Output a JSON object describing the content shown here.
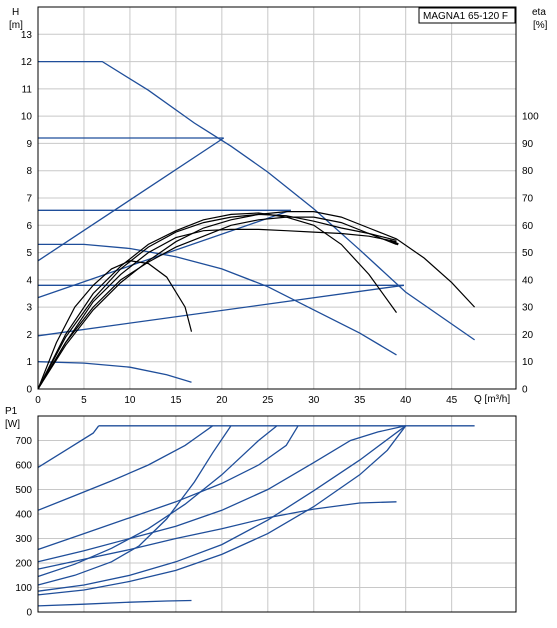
{
  "chart_data": [
    {
      "type": "line",
      "title": "MAGNA1 65-120 F",
      "xlabel": "Q [m³/h]",
      "ylabel_left": [
        "H",
        "[m]"
      ],
      "ylabel_right": [
        "eta",
        "[%]"
      ],
      "xlim": [
        0,
        52
      ],
      "ylim": [
        0,
        14
      ],
      "ylim_right": [
        0,
        140
      ],
      "x_ticks": [
        "0",
        "5",
        "10",
        "15",
        "20",
        "25",
        "30",
        "35",
        "40",
        "45"
      ],
      "y_ticks": [
        "0",
        "1",
        "2",
        "3",
        "4",
        "5",
        "6",
        "7",
        "8",
        "9",
        "10",
        "11",
        "12",
        "13"
      ],
      "y_ticks_right": [
        "0",
        "10",
        "20",
        "30",
        "40",
        "50",
        "60",
        "70",
        "80",
        "90",
        "100"
      ],
      "grid": true,
      "series_head": [
        {
          "kind": "max-curve",
          "points": [
            [
              0,
              12
            ],
            [
              7,
              12
            ],
            [
              12,
              10.95
            ],
            [
              17,
              9.75
            ],
            [
              21,
              8.9
            ],
            [
              25,
              7.95
            ],
            [
              30,
              6.6
            ],
            [
              35,
              5.1
            ],
            [
              40,
              3.55
            ],
            [
              47.5,
              1.8
            ]
          ]
        },
        {
          "kind": "constant-pressure",
          "points": [
            [
              0,
              9.2
            ],
            [
              20.2,
              9.2
            ]
          ]
        },
        {
          "kind": "constant-pressure",
          "points": [
            [
              0,
              6.55
            ],
            [
              27.5,
              6.55
            ]
          ]
        },
        {
          "kind": "constant-pressure",
          "points": [
            [
              0,
              3.8
            ],
            [
              39.8,
              3.8
            ]
          ]
        },
        {
          "kind": "proportional-pressure",
          "points": [
            [
              0,
              4.7
            ],
            [
              20.2,
              9.2
            ]
          ]
        },
        {
          "kind": "proportional-pressure",
          "points": [
            [
              0,
              3.35
            ],
            [
              27.5,
              6.55
            ]
          ]
        },
        {
          "kind": "proportional-pressure",
          "points": [
            [
              0,
              1.95
            ],
            [
              39.8,
              3.8
            ]
          ]
        },
        {
          "kind": "constant-curve",
          "points": [
            [
              0,
              5.3
            ],
            [
              5,
              5.3
            ],
            [
              10,
              5.15
            ],
            [
              15,
              4.85
            ],
            [
              20,
              4.4
            ],
            [
              25,
              3.75
            ],
            [
              30,
              2.9
            ],
            [
              35,
              2.05
            ],
            [
              39,
              1.25
            ]
          ]
        },
        {
          "kind": "constant-curve",
          "points": [
            [
              0,
              1.0
            ],
            [
              5,
              0.95
            ],
            [
              10,
              0.8
            ],
            [
              14,
              0.52
            ],
            [
              16.7,
              0.25
            ]
          ]
        }
      ],
      "series_eta": [
        {
          "kind": "efficiency",
          "points": [
            [
              0,
              0
            ],
            [
              3,
              17
            ],
            [
              6,
              30
            ],
            [
              9,
              40
            ],
            [
              12,
              46.5
            ],
            [
              15,
              52
            ],
            [
              18,
              56
            ],
            [
              21,
              60
            ],
            [
              24,
              62
            ],
            [
              27,
              63
            ],
            [
              30,
              63
            ],
            [
              33,
              61
            ],
            [
              36,
              57
            ],
            [
              39,
              53
            ]
          ]
        },
        {
          "kind": "efficiency",
          "points": [
            [
              0,
              0
            ],
            [
              3,
              16
            ],
            [
              6,
              29
            ],
            [
              9,
              39
            ],
            [
              12,
              47
            ],
            [
              15,
              54
            ],
            [
              18,
              59
            ],
            [
              21,
              62
            ],
            [
              24,
              64
            ],
            [
              27,
              65
            ],
            [
              30,
              65
            ],
            [
              33,
              63
            ],
            [
              36,
              59
            ],
            [
              39,
              55
            ],
            [
              42,
              48
            ],
            [
              45,
              39
            ],
            [
              47.5,
              30
            ]
          ]
        },
        {
          "kind": "efficiency",
          "points": [
            [
              0,
              0
            ],
            [
              3,
              19
            ],
            [
              6,
              33
            ],
            [
              9,
              44
            ],
            [
              12,
              52
            ],
            [
              15,
              57.5
            ],
            [
              18,
              61
            ],
            [
              21,
              63
            ],
            [
              24,
              64
            ],
            [
              27,
              63.5
            ],
            [
              30,
              61.5
            ],
            [
              33,
              59
            ],
            [
              36,
              57
            ],
            [
              39,
              54.5
            ]
          ]
        },
        {
          "kind": "efficiency",
          "points": [
            [
              0,
              0
            ],
            [
              3,
              20
            ],
            [
              6,
              35
            ],
            [
              9,
              45
            ],
            [
              12,
              53
            ],
            [
              15,
              58
            ],
            [
              18,
              62
            ],
            [
              21,
              64
            ],
            [
              24,
              64.5
            ],
            [
              27,
              63
            ],
            [
              30,
              60
            ],
            [
              33,
              53
            ],
            [
              36,
              42
            ],
            [
              39,
              28
            ]
          ]
        },
        {
          "kind": "efficiency",
          "points": [
            [
              0,
              0
            ],
            [
              2,
              17
            ],
            [
              4,
              30
            ],
            [
              6,
              38
            ],
            [
              8,
              44
            ],
            [
              10,
              47
            ],
            [
              12,
              46
            ],
            [
              14,
              41
            ],
            [
              16,
              30
            ],
            [
              16.7,
              21
            ]
          ]
        },
        {
          "kind": "efficiency",
          "points": [
            [
              0,
              0
            ],
            [
              3,
              17
            ],
            [
              6,
              32
            ],
            [
              9,
              42
            ],
            [
              12,
              50
            ],
            [
              15,
              55.5
            ],
            [
              18,
              58
            ],
            [
              21,
              58.5
            ],
            [
              24,
              58.5
            ],
            [
              27,
              58
            ],
            [
              30,
              57.5
            ],
            [
              33,
              57
            ],
            [
              36,
              56
            ],
            [
              39,
              54
            ]
          ]
        }
      ],
      "bold_marker": [
        [
          38.3,
          5.45
        ],
        [
          39.2,
          5.3
        ]
      ]
    },
    {
      "type": "line",
      "title": "",
      "xlabel": "",
      "ylabel_left": [
        "P1",
        "[W]"
      ],
      "xlim": [
        0,
        52
      ],
      "ylim": [
        0,
        800
      ],
      "y_ticks": [
        "0",
        "100",
        "200",
        "300",
        "400",
        "500",
        "600",
        "700"
      ],
      "grid": true,
      "series_power": [
        {
          "kind": "max-power",
          "points": [
            [
              6.6,
              760
            ],
            [
              47.5,
              760
            ]
          ]
        },
        {
          "kind": "power",
          "points": [
            [
              0,
              590
            ],
            [
              3,
              660
            ],
            [
              6,
              730
            ],
            [
              6.6,
              760
            ]
          ]
        },
        {
          "kind": "power",
          "points": [
            [
              0,
              415
            ],
            [
              4,
              475
            ],
            [
              8,
              535
            ],
            [
              12,
              600
            ],
            [
              16,
              680
            ],
            [
              17.5,
              720
            ],
            [
              19,
              760
            ]
          ]
        },
        {
          "kind": "power",
          "points": [
            [
              0,
              255
            ],
            [
              5,
              320
            ],
            [
              10,
              385
            ],
            [
              15,
              450
            ],
            [
              20,
              525
            ],
            [
              24,
              600
            ],
            [
              27,
              680
            ],
            [
              28.3,
              760
            ]
          ]
        },
        {
          "kind": "power",
          "points": [
            [
              0,
              205
            ],
            [
              5,
              250
            ],
            [
              10,
              300
            ],
            [
              15,
              350
            ],
            [
              20,
              415
            ],
            [
              25,
              500
            ],
            [
              30,
              610
            ],
            [
              34,
              700
            ],
            [
              37,
              735
            ],
            [
              40,
              760
            ]
          ]
        },
        {
          "kind": "power",
          "points": [
            [
              0,
              175
            ],
            [
              5,
              215
            ],
            [
              10,
              255
            ],
            [
              15,
              300
            ],
            [
              20,
              340
            ],
            [
              25,
              385
            ],
            [
              30,
              420
            ],
            [
              35,
              445
            ],
            [
              39,
              450
            ]
          ]
        },
        {
          "kind": "power",
          "points": [
            [
              0,
              145
            ],
            [
              4,
              195
            ],
            [
              8,
              260
            ],
            [
              12,
              340
            ],
            [
              16,
              440
            ],
            [
              20,
              560
            ],
            [
              24,
              700
            ],
            [
              26,
              760
            ]
          ]
        },
        {
          "kind": "power",
          "points": [
            [
              0,
              110
            ],
            [
              4,
              150
            ],
            [
              8,
              205
            ],
            [
              11,
              270
            ],
            [
              14,
              380
            ],
            [
              17,
              530
            ],
            [
              19,
              650
            ],
            [
              21,
              760
            ]
          ]
        },
        {
          "kind": "power",
          "points": [
            [
              0,
              70
            ],
            [
              5,
              90
            ],
            [
              10,
              125
            ],
            [
              15,
              170
            ],
            [
              20,
              235
            ],
            [
              25,
              320
            ],
            [
              30,
              430
            ],
            [
              35,
              560
            ],
            [
              38,
              660
            ],
            [
              40,
              760
            ]
          ]
        },
        {
          "kind": "power",
          "points": [
            [
              0,
              85
            ],
            [
              5,
              110
            ],
            [
              10,
              150
            ],
            [
              15,
              205
            ],
            [
              20,
              275
            ],
            [
              25,
              375
            ],
            [
              30,
              495
            ],
            [
              35,
              620
            ],
            [
              40,
              760
            ]
          ]
        },
        {
          "kind": "power",
          "points": [
            [
              0,
              25
            ],
            [
              5,
              32
            ],
            [
              10,
              40
            ],
            [
              14,
              45
            ],
            [
              16.7,
              47
            ]
          ]
        }
      ]
    }
  ]
}
